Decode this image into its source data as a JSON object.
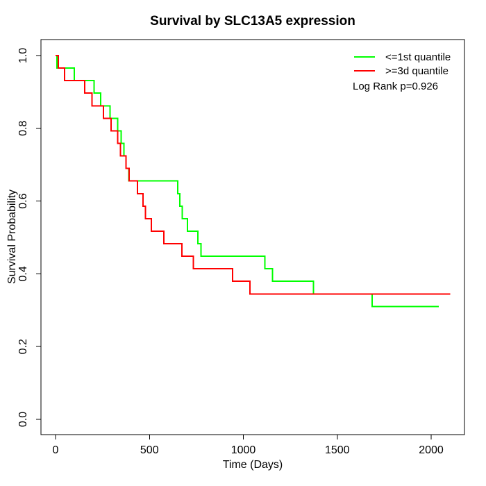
{
  "chart_data": {
    "type": "line",
    "subtype": "kaplan_meier_step",
    "title": "Survival by SLC13A5 expression",
    "xlabel": "Time (Days)",
    "ylabel": "Survival Probability",
    "xlim": [
      -80,
      2180
    ],
    "ylim": [
      -0.04,
      1.04
    ],
    "x_ticks": [
      0,
      500,
      1000,
      1500,
      2000
    ],
    "y_ticks": [
      "0.0",
      "0.2",
      "0.4",
      "0.6",
      "0.8",
      "1.0"
    ],
    "grid": false,
    "legend_position": "top-right",
    "annotation": "Log Rank p=0.926",
    "axis_color": "#000000",
    "series": [
      {
        "name": "<=1st quantile",
        "color": "#00ff00",
        "start": [
          0,
          1.0
        ],
        "steps": [
          [
            8,
            0.9655
          ],
          [
            100,
            0.931
          ],
          [
            205,
            0.8966
          ],
          [
            240,
            0.8621
          ],
          [
            290,
            0.8276
          ],
          [
            330,
            0.7931
          ],
          [
            350,
            0.7586
          ],
          [
            365,
            0.7241
          ],
          [
            376,
            0.6897
          ],
          [
            390,
            0.6552
          ],
          [
            650,
            0.6207
          ],
          [
            662,
            0.5862
          ],
          [
            675,
            0.5517
          ],
          [
            702,
            0.5172
          ],
          [
            758,
            0.4828
          ],
          [
            775,
            0.4483
          ],
          [
            1114,
            0.4138
          ],
          [
            1156,
            0.3793
          ],
          [
            1373,
            0.3448
          ],
          [
            1686,
            0.3103
          ]
        ],
        "end_time": 2040
      },
      {
        "name": ">=3d quantile",
        "color": "#ff0000",
        "start": [
          0,
          1.0
        ],
        "steps": [
          [
            15,
            0.9655
          ],
          [
            48,
            0.931
          ],
          [
            155,
            0.8966
          ],
          [
            195,
            0.8621
          ],
          [
            256,
            0.8276
          ],
          [
            296,
            0.7931
          ],
          [
            330,
            0.7586
          ],
          [
            346,
            0.7241
          ],
          [
            376,
            0.6897
          ],
          [
            392,
            0.6552
          ],
          [
            437,
            0.6207
          ],
          [
            466,
            0.5862
          ],
          [
            479,
            0.5517
          ],
          [
            511,
            0.5172
          ],
          [
            577,
            0.4828
          ],
          [
            672,
            0.4483
          ],
          [
            733,
            0.4138
          ],
          [
            943,
            0.3793
          ],
          [
            1036,
            0.3448
          ]
        ],
        "end_time": 2101
      }
    ]
  }
}
